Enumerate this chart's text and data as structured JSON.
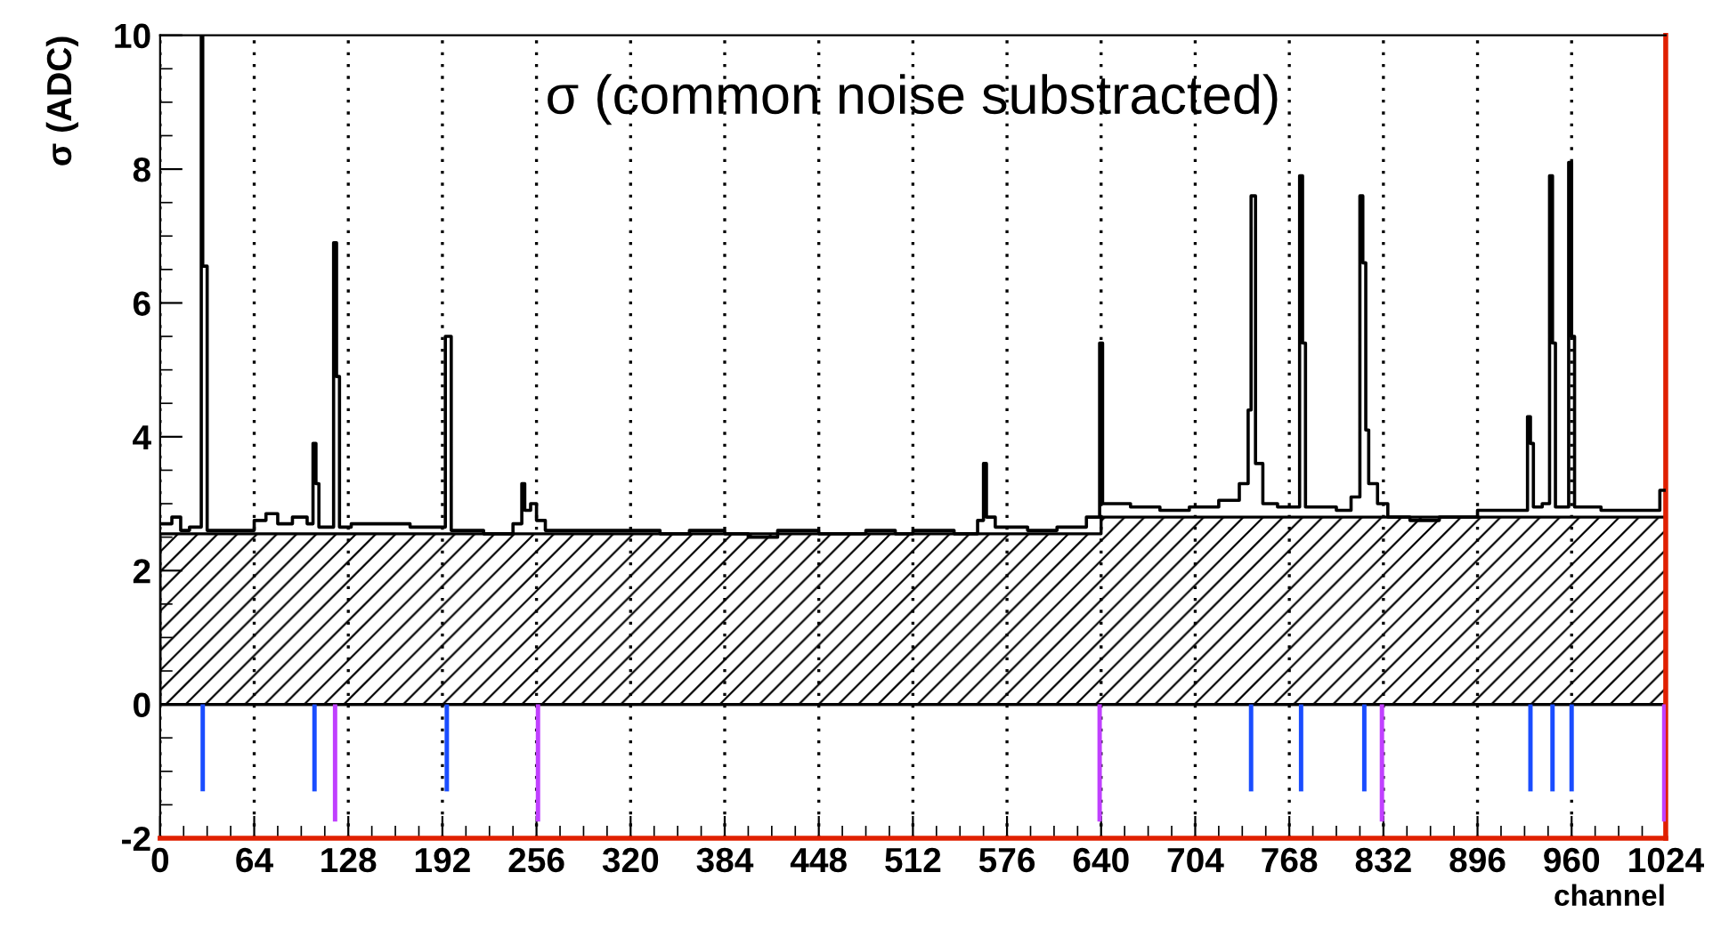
{
  "chart_data": {
    "type": "step",
    "title": "σ (common noise substracted)",
    "xlabel": "channel",
    "ylabel": "σ (ADC)",
    "xlim": [
      0,
      1024
    ],
    "ylim": [
      -2,
      10
    ],
    "xticks": [
      0,
      64,
      128,
      192,
      256,
      320,
      384,
      448,
      512,
      576,
      640,
      704,
      768,
      832,
      896,
      960,
      1024
    ],
    "yticks": [
      -2,
      0,
      2,
      4,
      6,
      8,
      10
    ],
    "grid": "x",
    "legend": false,
    "series": [
      {
        "type": "area",
        "color": "#000000",
        "x": [
          0,
          640,
          640,
          1024
        ],
        "values": [
          2.55,
          2.55,
          2.8,
          2.8
        ]
      },
      {
        "color": "#000000",
        "x": [
          0,
          8,
          14,
          20,
          28,
          29,
          32,
          50,
          64,
          72,
          80,
          90,
          100,
          104,
          106,
          108,
          118,
          120,
          122,
          130,
          150,
          170,
          194,
          198,
          220,
          240,
          246,
          248,
          252,
          256,
          262,
          290,
          320,
          340,
          360,
          384,
          400,
          420,
          448,
          480,
          500,
          512,
          540,
          556,
          560,
          562,
          568,
          590,
          610,
          630,
          639,
          641,
          660,
          680,
          700,
          720,
          734,
          740,
          742,
          745,
          750,
          760,
          775,
          777,
          779,
          800,
          810,
          816,
          818,
          820,
          822,
          828,
          835,
          850,
          870,
          896,
          920,
          930,
          932,
          934,
          940,
          945,
          947,
          949,
          958,
          960,
          962,
          980,
          1000,
          1020,
          1023
        ],
        "values": [
          2.7,
          2.8,
          2.6,
          2.65,
          10,
          6.55,
          2.6,
          2.6,
          2.75,
          2.85,
          2.7,
          2.8,
          2.7,
          3.9,
          3.3,
          2.65,
          6.9,
          4.9,
          2.65,
          2.7,
          2.7,
          2.65,
          5.5,
          2.6,
          2.55,
          2.7,
          3.3,
          2.9,
          3.0,
          2.75,
          2.6,
          2.6,
          2.6,
          2.55,
          2.6,
          2.55,
          2.5,
          2.6,
          2.55,
          2.6,
          2.55,
          2.6,
          2.55,
          2.75,
          3.6,
          2.8,
          2.65,
          2.6,
          2.65,
          2.8,
          5.4,
          3.0,
          2.95,
          2.9,
          2.95,
          3.05,
          3.3,
          4.4,
          7.6,
          3.6,
          3.0,
          2.95,
          7.9,
          5.4,
          2.95,
          2.9,
          3.1,
          7.6,
          6.6,
          4.1,
          3.3,
          3.0,
          2.8,
          2.75,
          2.8,
          2.9,
          2.9,
          4.3,
          3.9,
          2.95,
          3.0,
          7.9,
          5.4,
          2.95,
          8.1,
          5.5,
          2.95,
          2.9,
          2.9,
          3.2,
          3.2
        ]
      },
      {
        "type": "bar",
        "color": "#1a4dff",
        "x": [
          29,
          105,
          195,
          742,
          776,
          819,
          932,
          947,
          960
        ],
        "values": [
          -1.3,
          -1.3,
          -1.3,
          -1.3,
          -1.3,
          -1.3,
          -1.3,
          -1.3,
          -1.3
        ]
      },
      {
        "type": "bar",
        "color": "#c040ff",
        "x": [
          119,
          257,
          639,
          831,
          1023
        ],
        "values": [
          -1.75,
          -1.75,
          -1.75,
          -1.75,
          -1.75
        ]
      }
    ]
  }
}
